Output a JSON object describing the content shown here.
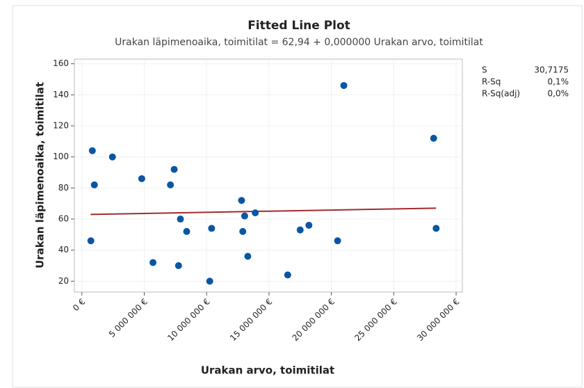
{
  "chart_data": {
    "type": "scatter",
    "title": "Fitted Line Plot",
    "subtitle": "Urakan läpimenoaika, toimitilat = 62,94 + 0,000000 Urakan arvo, toimitilat",
    "x_label": "Urakan arvo, toimitilat",
    "y_label": "Urakan läpimenoaika, toimitilat",
    "point_color": "#0b56a4",
    "line_color": "#a12a2e",
    "grid": true,
    "xlim": [
      -600000,
      30500000
    ],
    "ylim": [
      13,
      163
    ],
    "xticks": [
      {
        "value": 0,
        "label": "0 €"
      },
      {
        "value": 5000000,
        "label": "5 000 000 €"
      },
      {
        "value": 10000000,
        "label": "10 000 000 €"
      },
      {
        "value": 15000000,
        "label": "15 000 000 €"
      },
      {
        "value": 20000000,
        "label": "20 000 000 €"
      },
      {
        "value": 25000000,
        "label": "25 000 000 €"
      },
      {
        "value": 30000000,
        "label": "30 000 000 €"
      }
    ],
    "yticks": [
      20,
      40,
      60,
      80,
      100,
      120,
      140,
      160
    ],
    "x": [
      840000,
      1000000,
      2450000,
      720000,
      4800000,
      5700000,
      7100000,
      7400000,
      7900000,
      7750000,
      8400000,
      10250000,
      10400000,
      12800000,
      12900000,
      13050000,
      13900000,
      13300000,
      16500000,
      17500000,
      18200000,
      20500000,
      21000000,
      28200000,
      28400000
    ],
    "values": [
      104,
      82,
      100,
      46,
      86,
      32,
      82,
      92,
      60,
      30,
      52,
      20,
      54,
      72,
      52,
      62,
      64,
      36,
      24,
      53,
      56,
      46,
      146,
      112,
      54
    ],
    "fit": {
      "x": [
        700000,
        28400000
      ],
      "y": [
        63,
        67
      ]
    },
    "stats": [
      {
        "name": "S",
        "value": "30,7175"
      },
      {
        "name": "R-Sq",
        "value": "0,1%"
      },
      {
        "name": "R-Sq(adj)",
        "value": "0,0%"
      }
    ]
  }
}
